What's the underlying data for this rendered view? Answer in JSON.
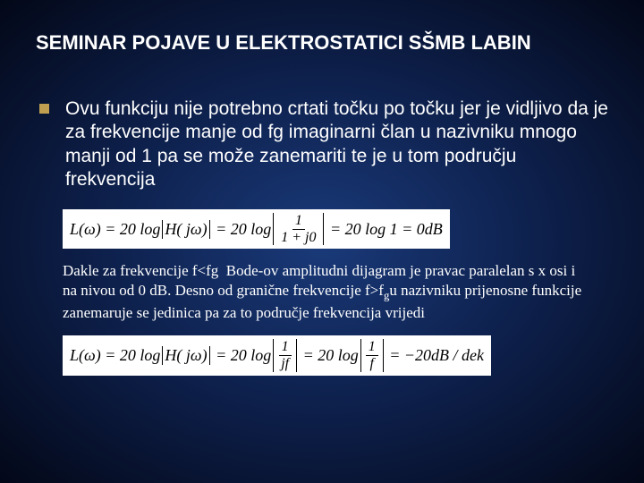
{
  "colors": {
    "background_center": "#1a3a7a",
    "background_mid": "#0d1f4a",
    "background_edge": "#030818",
    "text": "#ffffff",
    "bullet": "#c0a050",
    "formula_bg": "#ffffff",
    "formula_text": "#000000"
  },
  "title": "SEMINAR POJAVE U ELEKTROSTATICI   SŠMB LABIN",
  "bullet": {
    "text": "Ovu funkciju nije potrebno crtati točku po točku jer je vidljivo da je za frekvencije manje od fg imaginarni član u nazivniku mnogo manji od 1 pa se može zanemariti te je u tom području frekvencija"
  },
  "formula1": {
    "lhs": "L(ω) = 20 log",
    "abs1": "H( jω)",
    "eq": "= 20 log",
    "frac_num": "1",
    "frac_den": "1 + j0",
    "tail": "= 20 log 1 = 0dB"
  },
  "paragraph": "Dakle za frekvencije f<fg  Bode-ov amplitudni dijagram je pravac paralelan s x osi i na nivou od 0 dB. Desno od granične frekvencije f>fg u nazivniku prijenosne funkcije zanemaruje se jedinica pa za to područje frekvencija vrijedi",
  "formula2": {
    "lhs": "L(ω) = 20 log",
    "abs1": "H( jω)",
    "eq": "= 20 log",
    "frac1_num": "1",
    "frac1_den": "jf",
    "eq2": "= 20 log",
    "frac2_num": "1",
    "frac2_den": "f",
    "tail": "= −20dB / dek"
  }
}
